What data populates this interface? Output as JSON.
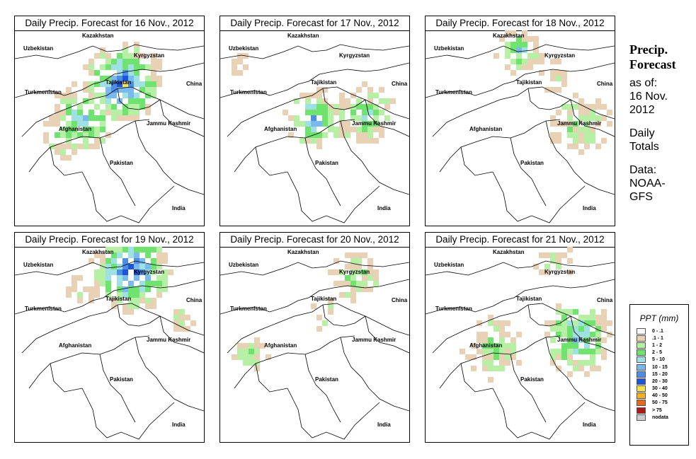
{
  "panels": [
    {
      "title": "Daily Precip. Forecast for  16 Nov., 2012",
      "pattern": "heavy-north-central"
    },
    {
      "title": "Daily Precip. Forecast for  17 Nov., 2012",
      "pattern": "central-moderate"
    },
    {
      "title": "Daily Precip. Forecast for  18 Nov., 2012",
      "pattern": "east-light"
    },
    {
      "title": "Daily Precip. Forecast for  19 Nov., 2012",
      "pattern": "north-heavy"
    },
    {
      "title": "Daily Precip. Forecast for  20 Nov., 2012",
      "pattern": "scattered-light"
    },
    {
      "title": "Daily Precip. Forecast for  21 Nov., 2012",
      "pattern": "kashmir-moderate"
    }
  ],
  "map_labels": {
    "kazakhstan": "Kazakhstan",
    "uzbekistan": "Uzbekistan",
    "kyrgyzstan": "Kyrgyzstan",
    "tajikistan": "Tajikistan",
    "turkmenistan": "Turkmenistan",
    "china": "China",
    "afghanistan": "Afghanistan",
    "jammu_kashmir": "Jammu Kashmir",
    "pakistan": "Pakistan",
    "india": "India"
  },
  "sidebar": {
    "title_line1": "Precip.",
    "title_line2": "Forecast",
    "asof_line1": "as of:",
    "asof_line2": "16 Nov.",
    "asof_line3": "2012",
    "totals_line1": "Daily",
    "totals_line2": "Totals",
    "data_line1": "Data:",
    "data_line2": "NOAA-",
    "data_line3": "GFS"
  },
  "legend": {
    "title": "PPT (mm)",
    "items": [
      {
        "label": "0 - .1",
        "color": "#ffffff"
      },
      {
        "label": ".1 - 1",
        "color": "#e8d1b4"
      },
      {
        "label": "1 - 2",
        "color": "#b6f0a4"
      },
      {
        "label": "2 - 5",
        "color": "#6ee46e"
      },
      {
        "label": "5 - 10",
        "color": "#9fe0e4"
      },
      {
        "label": "10 - 15",
        "color": "#7ab8f0"
      },
      {
        "label": "15 - 20",
        "color": "#4c8ee8"
      },
      {
        "label": "20 - 30",
        "color": "#1f54d8"
      },
      {
        "label": "30 - 40",
        "color": "#f7e44a"
      },
      {
        "label": "40 - 50",
        "color": "#f5b021"
      },
      {
        "label": "50 - 75",
        "color": "#e66a1c"
      },
      {
        "label": "> 75",
        "color": "#b01818"
      },
      {
        "label": "nodata",
        "color": "#cccccc"
      }
    ]
  }
}
